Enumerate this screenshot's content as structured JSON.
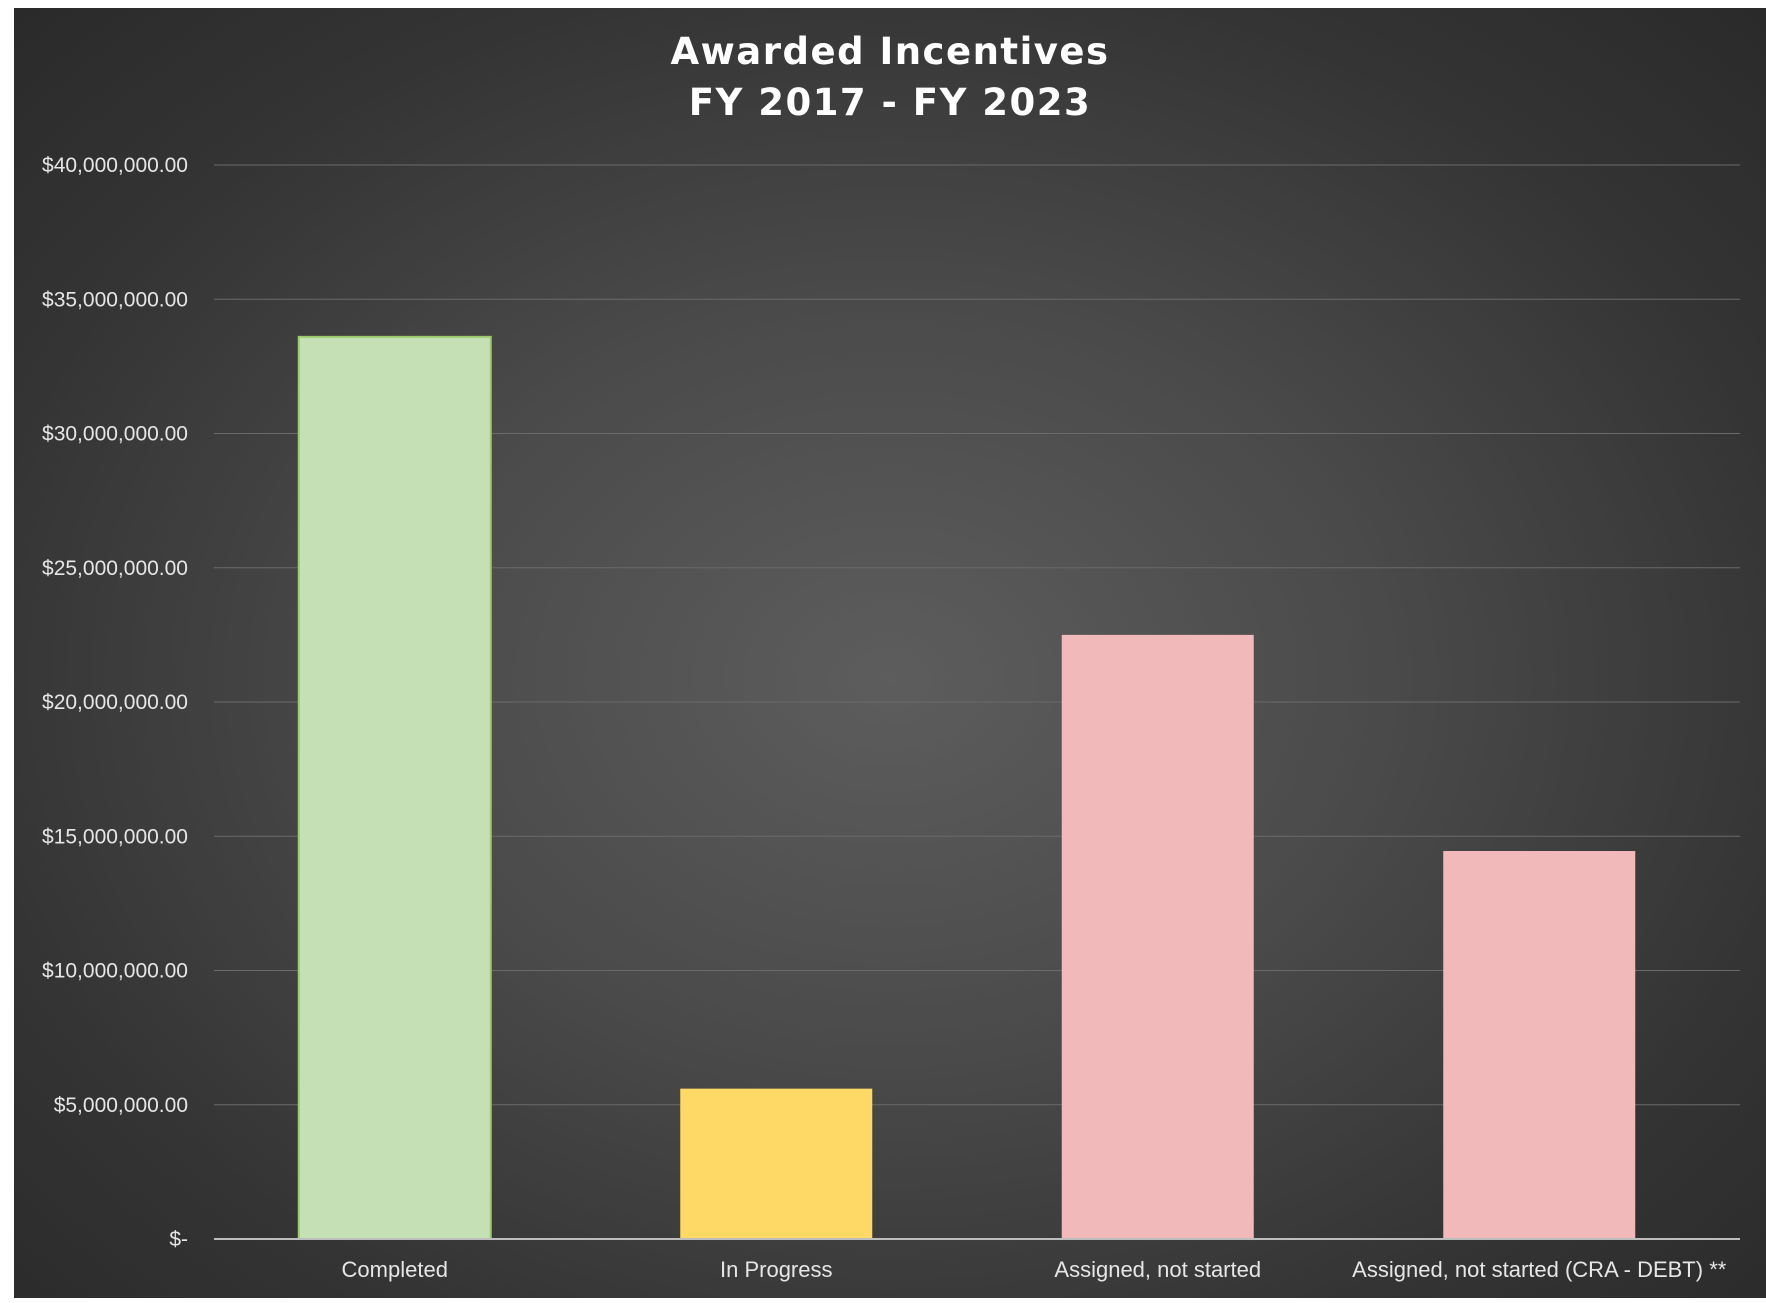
{
  "chart_data": {
    "type": "bar",
    "title_lines": [
      "Awarded Incentives",
      "FY 2017 - FY 2023"
    ],
    "categories": [
      "Completed",
      "In Progress",
      "Assigned, not started",
      "Assigned, not started (CRA - DEBT) **"
    ],
    "values": [
      33600000,
      5600000,
      22500000,
      14450000
    ],
    "colors": [
      "#c5e0b4",
      "#ffd966",
      "#f2b9bb",
      "#f2b9bb"
    ],
    "ylim": [
      0,
      40000000
    ],
    "yticks": [
      0,
      5000000,
      10000000,
      15000000,
      20000000,
      25000000,
      30000000,
      35000000,
      40000000
    ],
    "ytick_labels": [
      "$-",
      "$5,000,000.00",
      "$10,000,000.00",
      "$15,000,000.00",
      "$20,000,000.00",
      "$25,000,000.00",
      "$30,000,000.00",
      "$35,000,000.00",
      "$40,000,000.00"
    ],
    "xlabel": "",
    "ylabel": "",
    "grid": true,
    "legend": false
  }
}
